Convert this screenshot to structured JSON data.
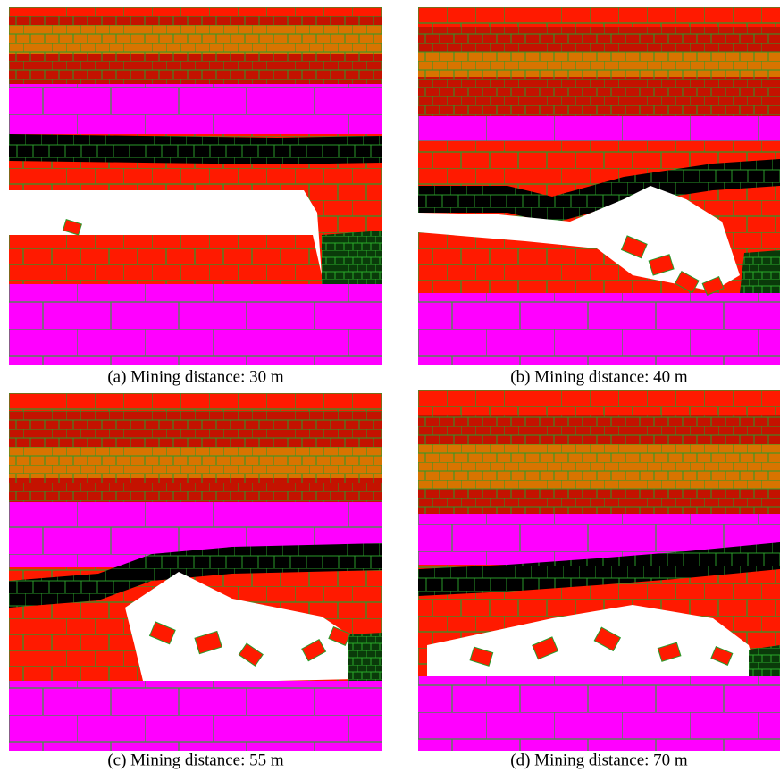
{
  "panels": [
    {
      "caption": "(a) Mining distance: 30 m"
    },
    {
      "caption": "(b) Mining distance: 40 m"
    },
    {
      "caption": "(c) Mining distance: 55 m"
    },
    {
      "caption": "(d) Mining distance: 70 m"
    }
  ]
}
